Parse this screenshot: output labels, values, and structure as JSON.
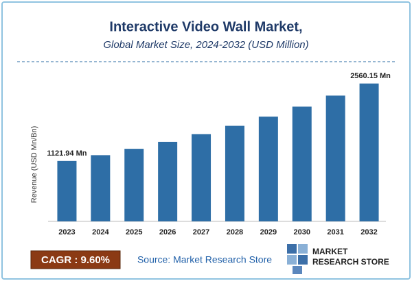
{
  "chart_data": {
    "type": "bar",
    "title": "Interactive Video Wall Market,",
    "subtitle": "Global Market Size, 2024-2032 (USD Million)",
    "y_label": "Revenue (USD Mn/Bn)",
    "categories": [
      "2023",
      "2024",
      "2025",
      "2026",
      "2027",
      "2028",
      "2029",
      "2030",
      "2031",
      "2032"
    ],
    "values": [
      1121.94,
      1229.6,
      1347.7,
      1477.1,
      1618.9,
      1774.3,
      1944.6,
      2131.3,
      2335.9,
      2560.15
    ],
    "value_labels": [
      "1121.94 Mn",
      null,
      null,
      null,
      null,
      null,
      null,
      null,
      null,
      "2560.15 Mn"
    ],
    "color": "#2e6ea6",
    "ylim": [
      0,
      2800
    ]
  },
  "footer": {
    "cagr": "CAGR : 9.60%",
    "source": "Source: Market Research Store",
    "logo_line1": "MARKET",
    "logo_line2": "RESEARCH STORE"
  }
}
